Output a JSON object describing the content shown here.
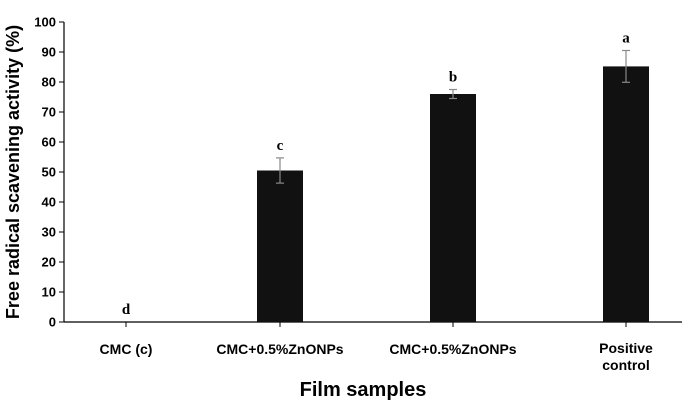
{
  "chart_data": {
    "type": "bar",
    "title": "",
    "xlabel": "Film samples",
    "ylabel": "Free radical scavening activity (%)",
    "ylim": [
      0,
      100
    ],
    "yticks": [
      0,
      10,
      20,
      30,
      40,
      50,
      60,
      70,
      80,
      90,
      100
    ],
    "grid": false,
    "categories": [
      [
        "CMC (c)"
      ],
      [
        "CMC+0.5%ZnONPs"
      ],
      [
        "CMC+0.5%ZnONPs"
      ],
      [
        "Positive",
        "control"
      ]
    ],
    "values": [
      0,
      50.5,
      76,
      85.2
    ],
    "errors": [
      0,
      4.2,
      1.5,
      5.3
    ],
    "significance": [
      "d",
      "c",
      "b",
      "a"
    ],
    "colors": {
      "bar": "#111111",
      "error_bar": "#888888",
      "axis": "#000000"
    }
  }
}
